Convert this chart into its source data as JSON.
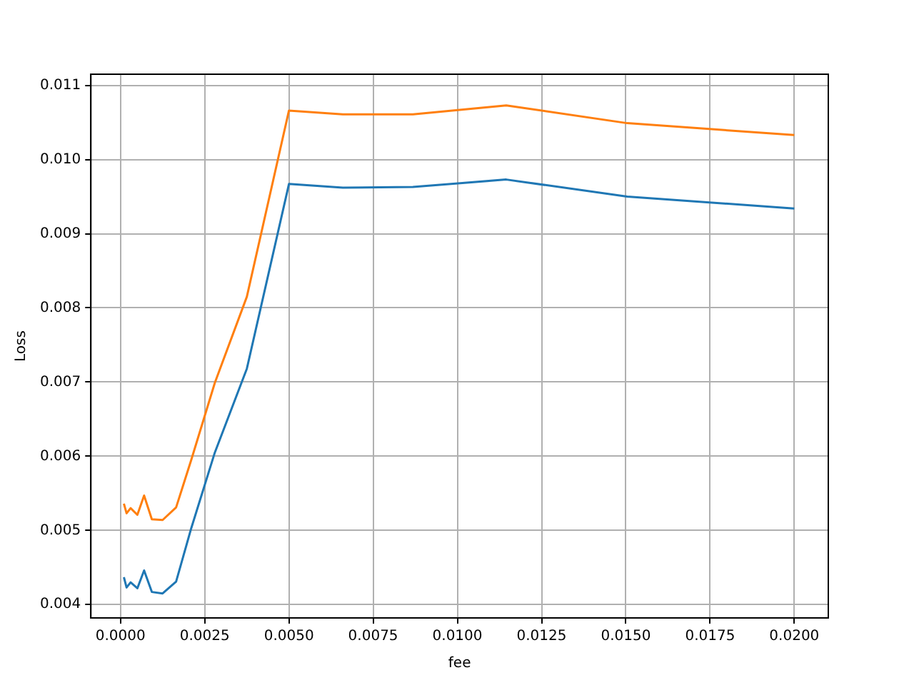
{
  "chart_data": {
    "type": "line",
    "xlabel": "fee",
    "ylabel": "Loss",
    "x": [
      0.0001,
      0.00018,
      0.0003,
      0.0005,
      0.0007,
      0.00093,
      0.00125,
      0.00165,
      0.0021,
      0.0028,
      0.00375,
      0.005,
      0.0066,
      0.00868,
      0.01145,
      0.01504,
      0.02
    ],
    "series": [
      {
        "color": "#1f77b4",
        "values": [
          0.00437,
          0.00423,
          0.0043,
          0.00422,
          0.00446,
          0.00417,
          0.00415,
          0.00431,
          0.00503,
          0.00605,
          0.00718,
          0.00967,
          0.00962,
          0.00963,
          0.00973,
          0.0095,
          0.00934
        ]
      },
      {
        "color": "#ff7f0e",
        "values": [
          0.00536,
          0.00523,
          0.0053,
          0.00521,
          0.00547,
          0.00515,
          0.00514,
          0.00531,
          0.00595,
          0.00699,
          0.00815,
          0.01066,
          0.01061,
          0.01061,
          0.01073,
          0.01049,
          0.01033
        ]
      }
    ],
    "xlim": [
      -0.00088,
      0.02101
    ],
    "xticks": [
      {
        "value": 0,
        "label": "0.0000"
      },
      0.0025,
      {
        "value": 0.005,
        "label": "0.0050"
      },
      0.0075,
      {
        "value": 0.01,
        "label": "0.0100"
      },
      0.0125,
      {
        "value": 0.015,
        "label": "0.0150"
      },
      0.0175,
      {
        "value": 0.02,
        "label": "0.0200"
      }
    ],
    "ylim": [
      0.00382,
      0.01115
    ],
    "yticks": [
      0.004,
      0.005,
      0.006,
      0.007,
      0.008,
      0.009,
      {
        "value": 0.01,
        "label": "0.010"
      },
      0.011
    ],
    "grid": true,
    "legend": false
  }
}
